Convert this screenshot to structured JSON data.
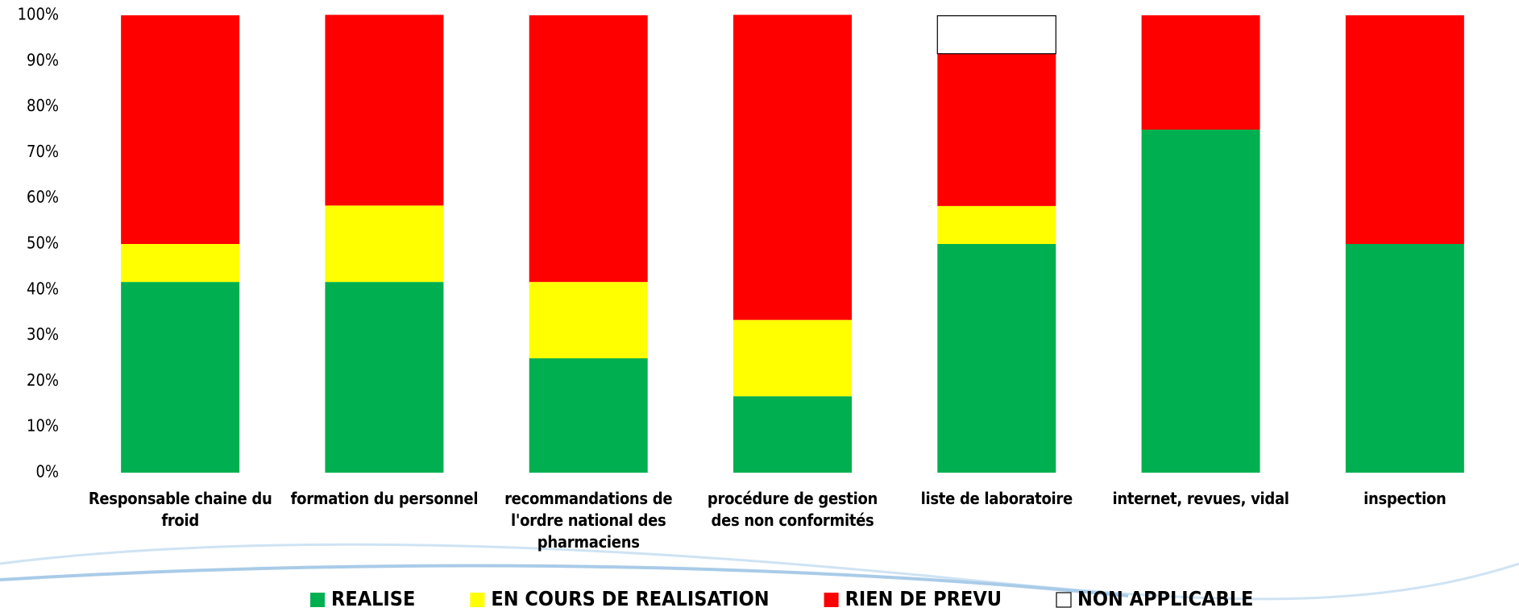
{
  "chart_data": {
    "type": "stacked_bar",
    "categories": [
      "Responsable chaine du froid",
      "formation du personnel",
      "recommandations de l'ordre national des pharmaciens",
      "procédure de gestion des non conformités",
      "liste de laboratoire",
      "internet, revues, vidal",
      "inspection"
    ],
    "series": [
      {
        "name": "REALISE",
        "color": "#00b050",
        "values": [
          41.7,
          41.7,
          25,
          16.7,
          50,
          75,
          50
        ]
      },
      {
        "name": "EN COURS DE REALISATION",
        "color": "#ffff00",
        "values": [
          8.3,
          16.7,
          16.7,
          16.7,
          8.3,
          0,
          0
        ]
      },
      {
        "name": "RIEN DE PREVU",
        "color": "#ff0000",
        "values": [
          50,
          41.7,
          58.3,
          66.7,
          33.3,
          25,
          50
        ]
      },
      {
        "name": "NON APPLICABLE",
        "color": "#ffffff",
        "values": [
          0,
          0,
          0,
          0,
          8.3,
          0,
          0
        ]
      }
    ],
    "ylim": [
      0,
      100
    ],
    "yticks": [
      {
        "value": 0,
        "label": "0%"
      },
      {
        "value": 10,
        "label": "10%"
      },
      {
        "value": 20,
        "label": "20%"
      },
      {
        "value": 30,
        "label": "30%"
      },
      {
        "value": 40,
        "label": "40%"
      },
      {
        "value": 50,
        "label": "50%"
      },
      {
        "value": 60,
        "label": "60%"
      },
      {
        "value": 70,
        "label": "70%"
      },
      {
        "value": 80,
        "label": "80%"
      },
      {
        "value": 90,
        "label": "90%"
      },
      {
        "value": 100,
        "label": "100%"
      }
    ],
    "legend": "bottom"
  }
}
